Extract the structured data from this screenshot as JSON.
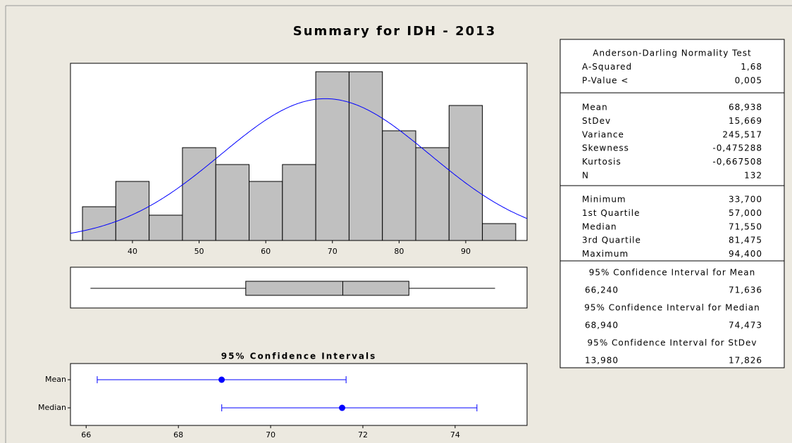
{
  "title": "Summary for IDH - 2013",
  "chart_data": [
    {
      "type": "histogram",
      "bins": [
        32.5,
        37.5,
        42.5,
        47.5,
        52.5,
        57.5,
        62.5,
        67.5,
        72.5,
        77.5,
        82.5,
        87.5,
        92.5,
        97.5
      ],
      "values": [
        4,
        7,
        3,
        11,
        9,
        7,
        9,
        20,
        20,
        13,
        11,
        16,
        2
      ],
      "color": "#c0c0c0",
      "xlim": [
        30.7,
        99.2
      ],
      "xticks": [
        40,
        50,
        60,
        70,
        80,
        90
      ],
      "ylim": [
        0,
        21
      ],
      "fit": {
        "type": "normal",
        "mean": 68.938,
        "sd": 15.669,
        "color": "#0000ff"
      }
    },
    {
      "type": "box",
      "min": 33.7,
      "q1": 57.0,
      "median": 71.55,
      "q3": 81.475,
      "max": 94.4,
      "color": "#c0c0c0",
      "xlim": [
        30.7,
        99.2
      ]
    },
    {
      "type": "interval",
      "title": "95% Confidence Intervals",
      "categories": [
        "Mean",
        "Median"
      ],
      "values": [
        68.938,
        71.55
      ],
      "low": [
        66.24,
        68.94
      ],
      "high": [
        71.636,
        74.473
      ],
      "xlim": [
        65.66,
        75.56
      ],
      "xticks": [
        66,
        68,
        70,
        72,
        74
      ],
      "color": "#0000ff"
    }
  ],
  "summary": {
    "sections": [
      {
        "title": "Anderson-Darling Normality Test",
        "rows": [
          [
            "A-Squared",
            "1,68"
          ],
          [
            "P-Value <",
            "0,005"
          ]
        ]
      },
      {
        "rows": [
          [
            "Mean",
            "68,938"
          ],
          [
            "StDev",
            "15,669"
          ],
          [
            "Variance",
            "245,517"
          ],
          [
            "Skewness",
            "-0,475288"
          ],
          [
            "Kurtosis",
            "-0,667508"
          ],
          [
            "N",
            "132"
          ]
        ]
      },
      {
        "rows": [
          [
            "Minimum",
            "33,700"
          ],
          [
            "1st Quartile",
            "57,000"
          ],
          [
            "Median",
            "71,550"
          ],
          [
            "3rd Quartile",
            "81,475"
          ],
          [
            "Maximum",
            "94,400"
          ]
        ]
      }
    ],
    "intervals": [
      {
        "title": "95% Confidence Interval for Mean",
        "low": "66,240",
        "high": "71,636"
      },
      {
        "title": "95% Confidence Interval for Median",
        "low": "68,940",
        "high": "74,473"
      },
      {
        "title": "95% Confidence Interval for StDev",
        "low": "13,980",
        "high": "17,826"
      }
    ]
  }
}
